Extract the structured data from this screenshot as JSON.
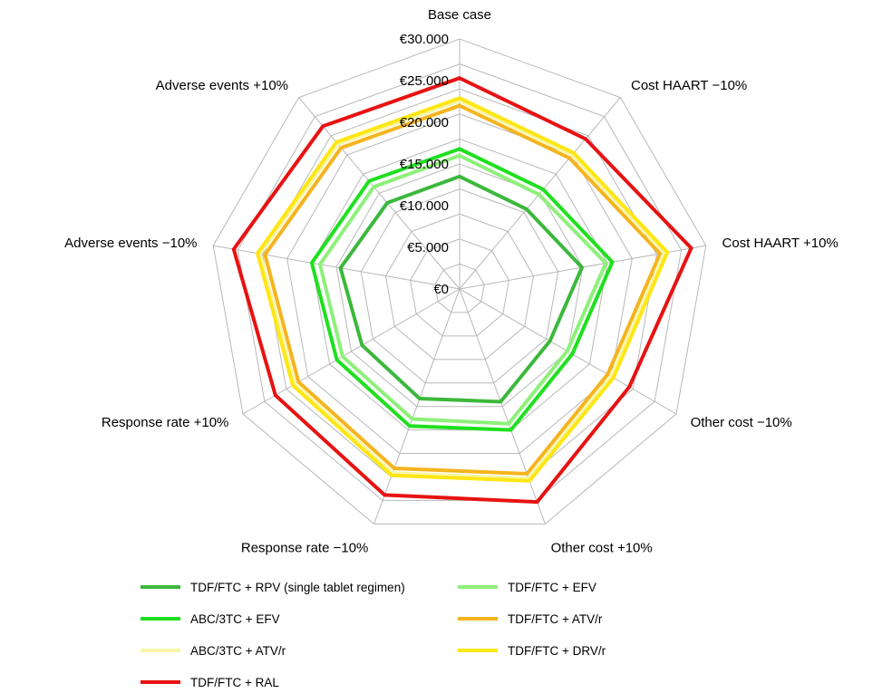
{
  "chart_data": {
    "type": "radar",
    "currency_prefix": "€",
    "axes": [
      "Base case",
      "Cost HAART −10%",
      "Cost HAART +10%",
      "Other cost −10%",
      "Other cost +10%",
      "Response rate −10%",
      "Response rate +10%",
      "Adverse events −10%",
      "Adverse events +10%"
    ],
    "ticks": [
      "€0",
      "€5.000",
      "€10.000",
      "€15.000",
      "€20.000",
      "€25.000",
      "€30.000"
    ],
    "tick_values": [
      0,
      5000,
      10000,
      15000,
      20000,
      25000,
      30000
    ],
    "rlim": [
      0,
      30000
    ],
    "grid_rings": 10,
    "series": [
      {
        "name": "TDF/FTC + RPV (single tablet regimen)",
        "color": "#3cb83c",
        "values": [
          13500,
          12500,
          14900,
          12500,
          14400,
          14000,
          13500,
          14500,
          13500
        ]
      },
      {
        "name": "TDF/FTC + EFV",
        "color": "#8ef07a",
        "values": [
          16000,
          14800,
          17800,
          14900,
          17200,
          16600,
          16200,
          17000,
          16000
        ]
      },
      {
        "name": "ABC/3TC + EFV",
        "color": "#1fe01f",
        "values": [
          16800,
          15600,
          18600,
          15600,
          18000,
          17500,
          17000,
          18000,
          16900
        ]
      },
      {
        "name": "TDF/FTC + ATV/r",
        "color": "#f5b41e",
        "values": [
          22000,
          20500,
          24400,
          20500,
          23600,
          22900,
          22300,
          23700,
          22100
        ]
      },
      {
        "name": "ABC/3TC + ATV/r",
        "color": "#f6f6a6",
        "values": [
          22600,
          21000,
          25000,
          21000,
          24200,
          23500,
          22800,
          24300,
          22700
        ]
      },
      {
        "name": "TDF/FTC + DRV/r",
        "color": "#ffe614",
        "values": [
          22900,
          21300,
          25300,
          21300,
          24500,
          23800,
          23100,
          24600,
          23000
        ]
      },
      {
        "name": "TDF/FTC + RAL",
        "color": "#e81212",
        "values": [
          25300,
          23500,
          28200,
          23500,
          27200,
          26300,
          25500,
          27500,
          25500
        ]
      }
    ]
  },
  "legend": {
    "items": [
      {
        "label": "TDF/FTC + RPV (single tablet regimen)",
        "color": "#3cb83c"
      },
      {
        "label": "TDF/FTC + EFV",
        "color": "#8ef07a"
      },
      {
        "label": "ABC/3TC + EFV",
        "color": "#1fe01f"
      },
      {
        "label": "TDF/FTC + ATV/r",
        "color": "#f5b41e"
      },
      {
        "label": "ABC/3TC + ATV/r",
        "color": "#f6f6a6"
      },
      {
        "label": "TDF/FTC + DRV/r",
        "color": "#ffe614"
      },
      {
        "label": "TDF/FTC + RAL",
        "color": "#e81212"
      }
    ]
  }
}
